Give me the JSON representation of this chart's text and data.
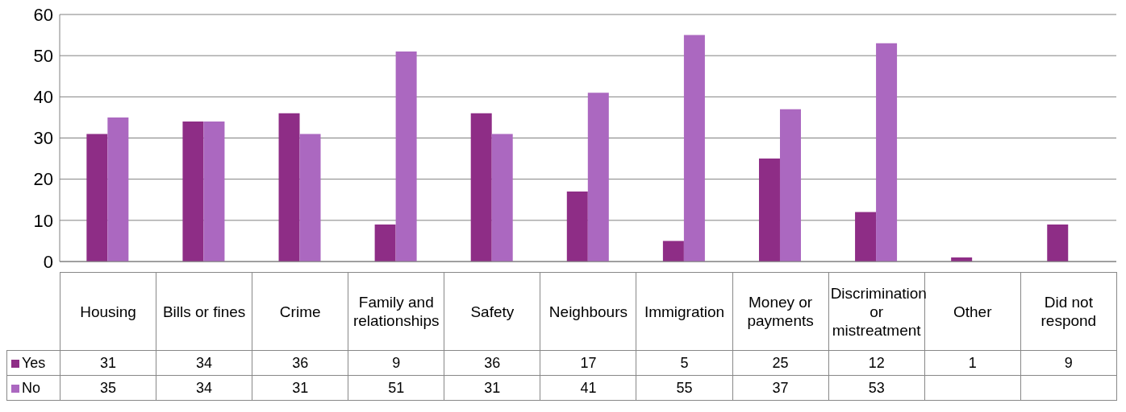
{
  "chart_data": {
    "type": "bar",
    "categories": [
      "Housing",
      "Bills or fines",
      "Crime",
      "Family and relationships",
      "Safety",
      "Neighbours",
      "Immigration",
      "Money or payments",
      "Discrimination or mistreatment",
      "Other",
      "Did not respond"
    ],
    "series": [
      {
        "name": "Yes",
        "color": "#8e2d86",
        "values": [
          31,
          34,
          36,
          9,
          36,
          17,
          5,
          25,
          12,
          1,
          9
        ]
      },
      {
        "name": "No",
        "color": "#ab68c0",
        "values": [
          35,
          34,
          31,
          51,
          31,
          41,
          55,
          37,
          53,
          null,
          null
        ]
      }
    ],
    "ylim": [
      0,
      60
    ],
    "yticks": [
      0,
      10,
      20,
      30,
      40,
      50,
      60
    ],
    "grid": "y",
    "legend": "bottom left",
    "data_labels": true
  }
}
